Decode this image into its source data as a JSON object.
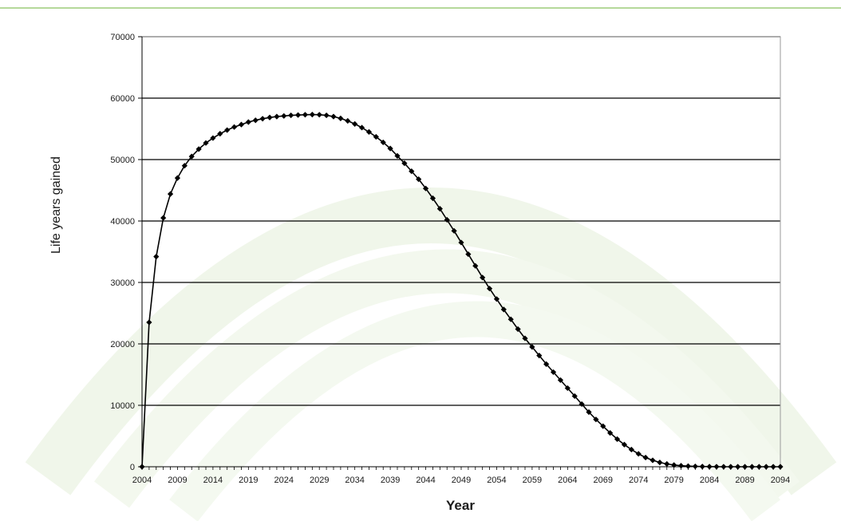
{
  "colors": {
    "line": "#000000",
    "grid": "#000000",
    "top_rule": "#b5d99a",
    "watermark": "#eef5e6"
  },
  "chart_data": {
    "type": "line",
    "title": "",
    "xlabel": "Year",
    "ylabel": "Life years gained",
    "xlim": [
      2004,
      2094
    ],
    "ylim": [
      0,
      70000
    ],
    "x_ticks": [
      2004,
      2009,
      2014,
      2019,
      2024,
      2029,
      2034,
      2039,
      2044,
      2049,
      2054,
      2059,
      2064,
      2069,
      2074,
      2079,
      2084,
      2089,
      2094
    ],
    "y_ticks": [
      0,
      10000,
      20000,
      30000,
      40000,
      50000,
      60000,
      70000
    ],
    "grid": "horizontal",
    "marker": "diamond",
    "series": [
      {
        "x": [
          2004,
          2005,
          2006,
          2007,
          2008,
          2009,
          2010,
          2011,
          2012,
          2013,
          2014,
          2015,
          2016,
          2017,
          2018,
          2019,
          2020,
          2021,
          2022,
          2023,
          2024,
          2025,
          2026,
          2027,
          2028,
          2029,
          2030,
          2031,
          2032,
          2033,
          2034,
          2035,
          2036,
          2037,
          2038,
          2039,
          2040,
          2041,
          2042,
          2043,
          2044,
          2045,
          2046,
          2047,
          2048,
          2049,
          2050,
          2051,
          2052,
          2053,
          2054,
          2055,
          2056,
          2057,
          2058,
          2059,
          2060,
          2061,
          2062,
          2063,
          2064,
          2065,
          2066,
          2067,
          2068,
          2069,
          2070,
          2071,
          2072,
          2073,
          2074,
          2075,
          2076,
          2077,
          2078,
          2079,
          2080,
          2081,
          2082,
          2083,
          2084,
          2085,
          2086,
          2087,
          2088,
          2089,
          2090,
          2091,
          2092,
          2093,
          2094
        ],
        "values": [
          0,
          23500,
          34200,
          40500,
          44400,
          47000,
          49000,
          50500,
          51700,
          52700,
          53500,
          54200,
          54800,
          55300,
          55700,
          56100,
          56400,
          56650,
          56850,
          57000,
          57100,
          57200,
          57250,
          57300,
          57320,
          57300,
          57200,
          57000,
          56700,
          56300,
          55800,
          55200,
          54500,
          53700,
          52800,
          51800,
          50600,
          49400,
          48100,
          46800,
          45300,
          43700,
          42000,
          40200,
          38400,
          36500,
          34600,
          32700,
          30800,
          29000,
          27300,
          25600,
          24000,
          22400,
          20900,
          19500,
          18100,
          16700,
          15400,
          14100,
          12800,
          11500,
          10200,
          8900,
          7700,
          6600,
          5500,
          4500,
          3600,
          2800,
          2100,
          1500,
          1050,
          700,
          450,
          280,
          170,
          100,
          60,
          35,
          20,
          10,
          5,
          2,
          1,
          0,
          0,
          0,
          0,
          0,
          0
        ]
      }
    ]
  }
}
